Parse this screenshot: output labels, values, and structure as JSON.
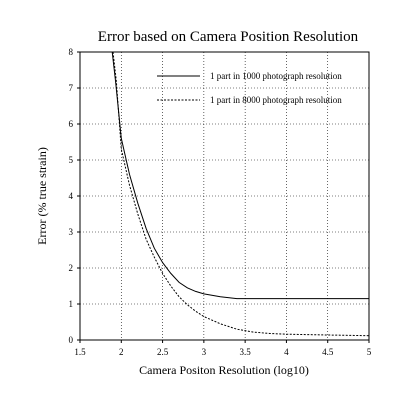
{
  "chart_data": {
    "type": "line",
    "title": "Error based on Camera Position Resolution",
    "xlabel": "Camera Positon Resolution (log10)",
    "ylabel": "Error (% true strain)",
    "xlim": [
      1.5,
      5
    ],
    "ylim": [
      0,
      8
    ],
    "x_ticks": [
      "1.5",
      "2",
      "2.5",
      "3",
      "3.5",
      "4",
      "4.5",
      "5"
    ],
    "y_ticks": [
      "0",
      "1",
      "2",
      "3",
      "4",
      "5",
      "6",
      "7",
      "8"
    ],
    "grid": true,
    "legend_position": "top-right",
    "series": [
      {
        "name": "1 part in 1000 photograph resolution",
        "style": "solid",
        "color": "#000000",
        "x": [
          1.89,
          1.93,
          2.0,
          2.1,
          2.2,
          2.3,
          2.4,
          2.5,
          2.6,
          2.7,
          2.8,
          2.9,
          3.0,
          3.2,
          3.4,
          3.6,
          3.8,
          4.0,
          4.5,
          5.0
        ],
        "y": [
          8.0,
          7.2,
          5.6,
          4.6,
          3.8,
          3.1,
          2.55,
          2.15,
          1.85,
          1.6,
          1.45,
          1.35,
          1.28,
          1.2,
          1.15,
          1.15,
          1.15,
          1.15,
          1.15,
          1.15
        ]
      },
      {
        "name": "1 part in 8000 photograph resolution",
        "style": "dashed",
        "color": "#000000",
        "x": [
          1.9,
          1.94,
          2.0,
          2.1,
          2.2,
          2.3,
          2.4,
          2.5,
          2.6,
          2.7,
          2.8,
          2.9,
          3.0,
          3.2,
          3.4,
          3.6,
          3.8,
          4.0,
          4.5,
          5.0
        ],
        "y": [
          8.0,
          7.2,
          5.3,
          4.3,
          3.5,
          2.8,
          2.3,
          1.85,
          1.5,
          1.2,
          0.98,
          0.8,
          0.65,
          0.45,
          0.3,
          0.22,
          0.18,
          0.16,
          0.14,
          0.12
        ]
      }
    ]
  }
}
